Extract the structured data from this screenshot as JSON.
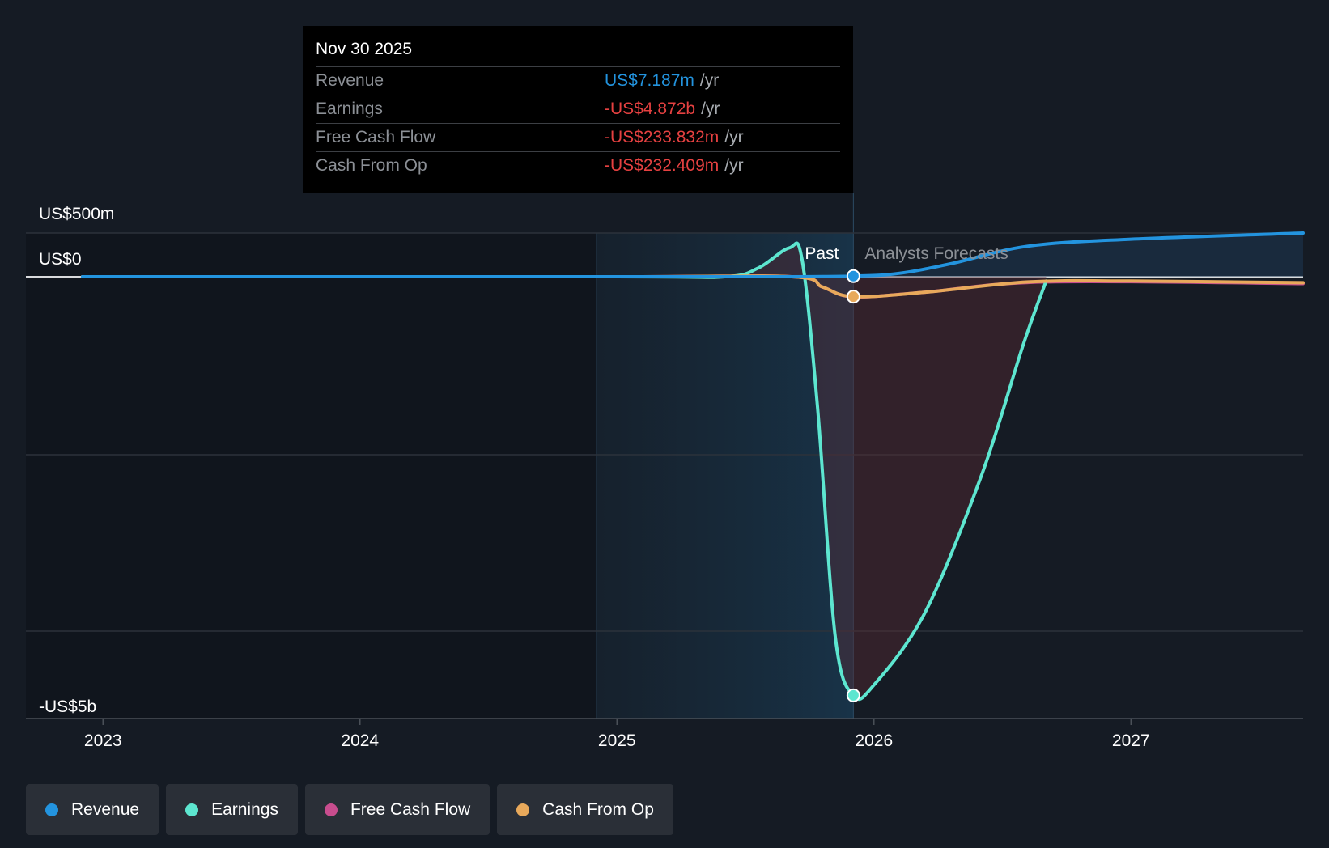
{
  "tooltip": {
    "date": "Nov 30 2025",
    "rows": [
      {
        "label": "Revenue",
        "value": "US$7.187m",
        "unit": "/yr",
        "color": "#2394df"
      },
      {
        "label": "Earnings",
        "value": "-US$4.872b",
        "unit": "/yr",
        "color": "#e64141"
      },
      {
        "label": "Free Cash Flow",
        "value": "-US$233.832m",
        "unit": "/yr",
        "color": "#e64141"
      },
      {
        "label": "Cash From Op",
        "value": "-US$232.409m",
        "unit": "/yr",
        "color": "#e64141"
      }
    ]
  },
  "legend": [
    {
      "label": "Revenue",
      "color": "#2394df"
    },
    {
      "label": "Earnings",
      "color": "#5de6d0"
    },
    {
      "label": "Free Cash Flow",
      "color": "#c84d8e"
    },
    {
      "label": "Cash From Op",
      "color": "#e8a95b"
    }
  ],
  "chart_data": {
    "type": "line",
    "y_tick_labels": [
      "US$500m",
      "US$0",
      "-US$5b"
    ],
    "y_ticks": [
      500,
      0,
      -5000
    ],
    "ylim": [
      -5000,
      500
    ],
    "y_units": "US$ millions",
    "x_tick_labels": [
      "2023",
      "2024",
      "2025",
      "2026",
      "2027"
    ],
    "x_ticks": [
      2023.0,
      2024.0,
      2025.0,
      2026.0,
      2027.0
    ],
    "xlim": [
      2022.7,
      2027.67
    ],
    "past_label": "Past",
    "forecast_label": "Analysts Forecasts",
    "past_region_start": 2024.92,
    "current_x": 2025.92,
    "series": [
      {
        "name": "Revenue",
        "color": "#2394df",
        "points": [
          [
            2022.92,
            0
          ],
          [
            2025.0,
            0
          ],
          [
            2025.5,
            0
          ],
          [
            2025.92,
            7
          ],
          [
            2026.1,
            40
          ],
          [
            2026.3,
            150
          ],
          [
            2026.6,
            350
          ],
          [
            2027.0,
            430
          ],
          [
            2027.67,
            500
          ]
        ]
      },
      {
        "name": "Earnings",
        "color": "#5de6d0",
        "points": [
          [
            2022.92,
            0
          ],
          [
            2025.0,
            0
          ],
          [
            2025.42,
            0
          ],
          [
            2025.55,
            100
          ],
          [
            2025.67,
            330
          ],
          [
            2025.72,
            200
          ],
          [
            2025.78,
            -1500
          ],
          [
            2025.85,
            -4200
          ],
          [
            2025.92,
            -4872
          ],
          [
            2026.0,
            -4750
          ],
          [
            2026.2,
            -3900
          ],
          [
            2026.42,
            -2300
          ],
          [
            2026.58,
            -800
          ],
          [
            2026.67,
            -50
          ]
        ]
      },
      {
        "name": "Free Cash Flow",
        "color": "#c84d8e",
        "points": [
          [
            2022.92,
            0
          ],
          [
            2025.0,
            0
          ],
          [
            2025.68,
            0
          ],
          [
            2025.8,
            -120
          ],
          [
            2025.92,
            -234
          ],
          [
            2026.2,
            -180
          ],
          [
            2026.67,
            -60
          ],
          [
            2027.67,
            -80
          ]
        ]
      },
      {
        "name": "Cash From Op",
        "color": "#e8a95b",
        "points": [
          [
            2022.92,
            0
          ],
          [
            2025.0,
            0
          ],
          [
            2025.68,
            0
          ],
          [
            2025.8,
            -120
          ],
          [
            2025.92,
            -232
          ],
          [
            2026.2,
            -180
          ],
          [
            2026.6,
            -60
          ],
          [
            2027.0,
            -50
          ],
          [
            2027.67,
            -70
          ]
        ]
      }
    ]
  }
}
